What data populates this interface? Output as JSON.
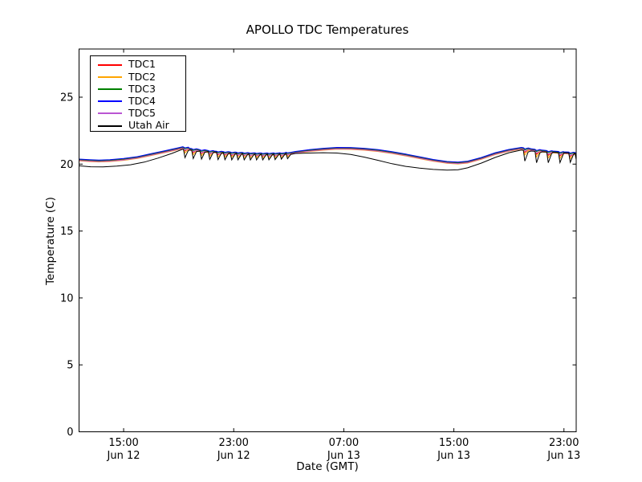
{
  "figure": {
    "title": "APOLLO TDC Temperatures",
    "xlabel": "Date (GMT)",
    "ylabel": "Temperature (C)",
    "background_color": "#ffffff",
    "frame_color": "#000000",
    "text_color": "#000000"
  },
  "chart_data": {
    "type": "line",
    "title": "APOLLO TDC Temperatures",
    "xlabel": "Date (GMT)",
    "ylabel": "Temperature (C)",
    "grid": false,
    "legend_position": "upper left",
    "x_unit": "hours since Jun 12 00:00 GMT",
    "xlim": [
      11.76,
      47.89
    ],
    "ylim": [
      0,
      28.6
    ],
    "yticks": [
      0,
      5,
      10,
      15,
      20,
      25
    ],
    "xticks": [
      {
        "t": 15,
        "label": "15:00",
        "sublabel": "Jun 12"
      },
      {
        "t": 23,
        "label": "23:00",
        "sublabel": "Jun 12"
      },
      {
        "t": 31,
        "label": "07:00",
        "sublabel": "Jun 13"
      },
      {
        "t": 39,
        "label": "15:00",
        "sublabel": "Jun 13"
      },
      {
        "t": 47,
        "label": "23:00",
        "sublabel": "Jun 13"
      }
    ],
    "spikes": [
      [
        19.4,
        0.62
      ],
      [
        20.0,
        0.62
      ],
      [
        20.6,
        0.6
      ],
      [
        21.2,
        0.58
      ],
      [
        21.8,
        0.55
      ],
      [
        22.3,
        0.52
      ],
      [
        22.8,
        0.5
      ],
      [
        23.25,
        0.48
      ],
      [
        23.7,
        0.46
      ],
      [
        24.15,
        0.45
      ],
      [
        24.6,
        0.44
      ],
      [
        25.05,
        0.43
      ],
      [
        25.5,
        0.42
      ],
      [
        25.95,
        0.42
      ],
      [
        26.4,
        0.4
      ],
      [
        26.85,
        0.38
      ],
      [
        44.1,
        0.8
      ],
      [
        44.95,
        0.85
      ],
      [
        45.8,
        0.8
      ],
      [
        46.65,
        0.75
      ],
      [
        47.4,
        0.7
      ],
      [
        47.85,
        0.6
      ]
    ],
    "series": [
      {
        "name": "TDC1",
        "color": "#ff0000",
        "base_ref": "TDC4",
        "offset": -0.08,
        "spike_scale": 0.35
      },
      {
        "name": "TDC2",
        "color": "#ffa500",
        "base_ref": "TDC4",
        "offset": -0.14,
        "spike_scale": 0.5
      },
      {
        "name": "TDC3",
        "color": "#008000",
        "base_ref": "TDC4",
        "offset": -0.04,
        "spike_scale": 0.15
      },
      {
        "name": "TDC4",
        "color": "#0000ff",
        "offset": 0,
        "spike_scale": 0.1,
        "base": [
          [
            11.76,
            20.38
          ],
          [
            12.5,
            20.33
          ],
          [
            13.2,
            20.3
          ],
          [
            14,
            20.33
          ],
          [
            15,
            20.42
          ],
          [
            16,
            20.56
          ],
          [
            17,
            20.78
          ],
          [
            18,
            21.0
          ],
          [
            18.8,
            21.18
          ],
          [
            19.3,
            21.3
          ],
          [
            19.8,
            21.18
          ],
          [
            20.6,
            21.08
          ],
          [
            21.6,
            20.98
          ],
          [
            22.6,
            20.92
          ],
          [
            23.6,
            20.87
          ],
          [
            24.6,
            20.84
          ],
          [
            25.6,
            20.83
          ],
          [
            26.6,
            20.86
          ],
          [
            27.5,
            20.95
          ],
          [
            28.5,
            21.08
          ],
          [
            29.5,
            21.18
          ],
          [
            30.5,
            21.25
          ],
          [
            31.5,
            21.24
          ],
          [
            32.5,
            21.18
          ],
          [
            33.5,
            21.08
          ],
          [
            34.5,
            20.93
          ],
          [
            35.5,
            20.75
          ],
          [
            36.5,
            20.55
          ],
          [
            37.5,
            20.35
          ],
          [
            38.5,
            20.2
          ],
          [
            39.3,
            20.15
          ],
          [
            40,
            20.22
          ],
          [
            41,
            20.5
          ],
          [
            42,
            20.85
          ],
          [
            43,
            21.1
          ],
          [
            43.9,
            21.25
          ],
          [
            44.6,
            21.15
          ],
          [
            45.4,
            21.05
          ],
          [
            46.2,
            20.98
          ],
          [
            47,
            20.92
          ],
          [
            47.89,
            20.87
          ]
        ]
      },
      {
        "name": "TDC5",
        "color": "#ba55d3",
        "base_ref": "TDC4",
        "offset": -0.11,
        "spike_scale": 0.2
      },
      {
        "name": "Utah Air",
        "color": "#000000",
        "offset": 0,
        "spike_scale": 1.0,
        "base": [
          [
            11.76,
            19.87
          ],
          [
            12.6,
            19.8
          ],
          [
            13.5,
            19.79
          ],
          [
            14.5,
            19.85
          ],
          [
            15.5,
            19.95
          ],
          [
            16.5,
            20.15
          ],
          [
            17.5,
            20.45
          ],
          [
            18.5,
            20.8
          ],
          [
            19.3,
            21.12
          ],
          [
            19.8,
            21.05
          ],
          [
            20.6,
            20.98
          ],
          [
            21.6,
            20.9
          ],
          [
            22.6,
            20.83
          ],
          [
            23.6,
            20.78
          ],
          [
            24.6,
            20.75
          ],
          [
            25.6,
            20.74
          ],
          [
            26.6,
            20.78
          ],
          [
            27.5,
            20.8
          ],
          [
            28.5,
            20.83
          ],
          [
            29.5,
            20.85
          ],
          [
            30.5,
            20.83
          ],
          [
            31.5,
            20.72
          ],
          [
            32.5,
            20.52
          ],
          [
            33.5,
            20.28
          ],
          [
            34.5,
            20.03
          ],
          [
            35.5,
            19.83
          ],
          [
            36.5,
            19.7
          ],
          [
            37.5,
            19.6
          ],
          [
            38.5,
            19.55
          ],
          [
            39.3,
            19.57
          ],
          [
            40,
            19.72
          ],
          [
            41,
            20.08
          ],
          [
            42,
            20.5
          ],
          [
            43,
            20.85
          ],
          [
            43.9,
            21.05
          ],
          [
            44.6,
            20.98
          ],
          [
            45.4,
            20.92
          ],
          [
            46.2,
            20.88
          ],
          [
            47,
            20.84
          ],
          [
            47.89,
            20.82
          ]
        ]
      }
    ]
  },
  "legend": {
    "items": [
      {
        "label": "TDC1",
        "color": "#ff0000"
      },
      {
        "label": "TDC2",
        "color": "#ffa500"
      },
      {
        "label": "TDC3",
        "color": "#008000"
      },
      {
        "label": "TDC4",
        "color": "#0000ff"
      },
      {
        "label": "TDC5",
        "color": "#ba55d3"
      },
      {
        "label": "Utah Air",
        "color": "#000000"
      }
    ]
  }
}
